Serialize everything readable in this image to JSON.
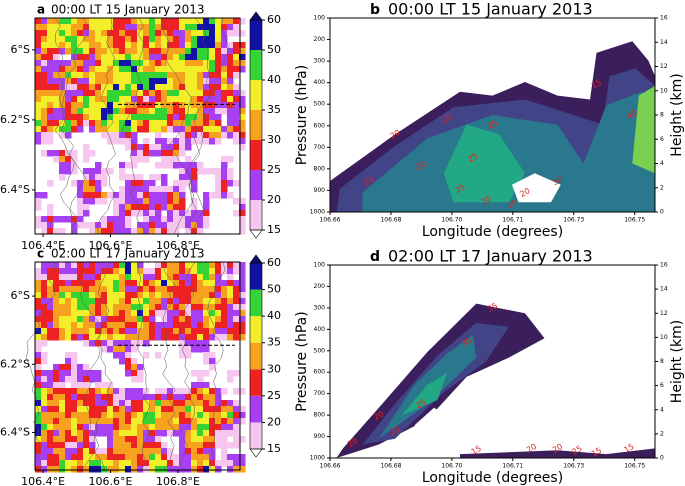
{
  "chart_data": [
    {
      "type": "map",
      "panel": "a",
      "title": "00:00 LT 15 January 2013",
      "xlim": [
        106.376,
        106.984
      ],
      "ylim": [
        -6.526,
        -5.909
      ],
      "xticks": [
        {
          "value": 106.4,
          "label": "106.4°E"
        },
        {
          "value": 106.6,
          "label": "106.6°E"
        },
        {
          "value": 106.8,
          "label": "106.8°E"
        }
      ],
      "yticks": [
        {
          "value": -6,
          "label": "6°S"
        },
        {
          "value": -6.2,
          "label": "6.2°S"
        },
        {
          "value": -6.4,
          "label": "6.4°S"
        }
      ],
      "colorbar": {
        "levels": [
          15,
          20,
          25,
          30,
          35,
          40,
          50,
          60
        ],
        "colors": [
          "#f7c6ef",
          "#a640f2",
          "#ee2222",
          "#f7a21f",
          "#f2ee2a",
          "#33d433",
          "#1212a8"
        ],
        "over": "#0a0a70",
        "under": "#ffffff"
      }
    },
    {
      "type": "contour",
      "panel": "b",
      "title": "00:00 LT 15 January 2013",
      "xlabel": "Longitude (degrees)",
      "ylabel": "Pressure (hPa)",
      "y2label": "Height (km)",
      "xlim": [
        106.66,
        106.756
      ],
      "ylim": [
        1000,
        100
      ],
      "y2lim": [
        0,
        16
      ],
      "xticks": [
        {
          "value": 106.66,
          "label": "106.66"
        },
        {
          "value": 106.678,
          "label": "106.68"
        },
        {
          "value": 106.696,
          "label": "106.70"
        },
        {
          "value": 106.714,
          "label": "106.71"
        },
        {
          "value": 106.732,
          "label": "106.73"
        },
        {
          "value": 106.75,
          "label": "106.75"
        }
      ],
      "yticks": [
        100,
        200,
        300,
        400,
        500,
        600,
        700,
        800,
        900,
        1000
      ],
      "y2ticks": [
        0,
        2,
        4,
        6,
        8,
        10,
        12,
        14,
        16
      ],
      "contour_labels": [
        20,
        20,
        25,
        25,
        15,
        25,
        20,
        25,
        40,
        30,
        15,
        20,
        20
      ]
    },
    {
      "type": "map",
      "panel": "c",
      "title": "02:00 LT 17 January 2013",
      "xlim": [
        106.376,
        106.984
      ],
      "ylim": [
        -6.51,
        -5.9
      ],
      "xticks": [
        {
          "value": 106.4,
          "label": "106.4°E"
        },
        {
          "value": 106.6,
          "label": "106.6°E"
        },
        {
          "value": 106.8,
          "label": "106.8°E"
        }
      ],
      "yticks": [
        {
          "value": -6,
          "label": "6°S"
        },
        {
          "value": -6.2,
          "label": "6.2°S"
        },
        {
          "value": -6.4,
          "label": "6.4°S"
        }
      ],
      "colorbar": {
        "levels": [
          15,
          20,
          25,
          30,
          35,
          40,
          50,
          60
        ],
        "colors": [
          "#f7c6ef",
          "#a640f2",
          "#ee2222",
          "#f7a21f",
          "#f2ee2a",
          "#33d433",
          "#1212a8"
        ],
        "over": "#0a0a70",
        "under": "#ffffff"
      }
    },
    {
      "type": "contour",
      "panel": "d",
      "title": "02:00 LT 17 January 2013",
      "xlabel": "Longitude (degrees)",
      "ylabel": "Pressure (hPa)",
      "y2label": "Height (km)",
      "xlim": [
        106.66,
        106.756
      ],
      "ylim": [
        1000,
        100
      ],
      "y2lim": [
        0,
        16
      ],
      "xticks": [
        {
          "value": 106.66,
          "label": "106.66"
        },
        {
          "value": 106.678,
          "label": "106.68"
        },
        {
          "value": 106.696,
          "label": "106.70"
        },
        {
          "value": 106.714,
          "label": "106.71"
        },
        {
          "value": 106.732,
          "label": "106.73"
        },
        {
          "value": 106.75,
          "label": "106.75"
        }
      ],
      "yticks": [
        100,
        200,
        300,
        400,
        500,
        600,
        700,
        800,
        900,
        1000
      ],
      "y2ticks": [
        0,
        2,
        4,
        6,
        8,
        10,
        12,
        14,
        16
      ],
      "contour_labels": [
        35,
        20,
        25,
        30,
        20,
        25,
        15,
        20,
        20,
        25,
        15,
        15
      ]
    }
  ]
}
